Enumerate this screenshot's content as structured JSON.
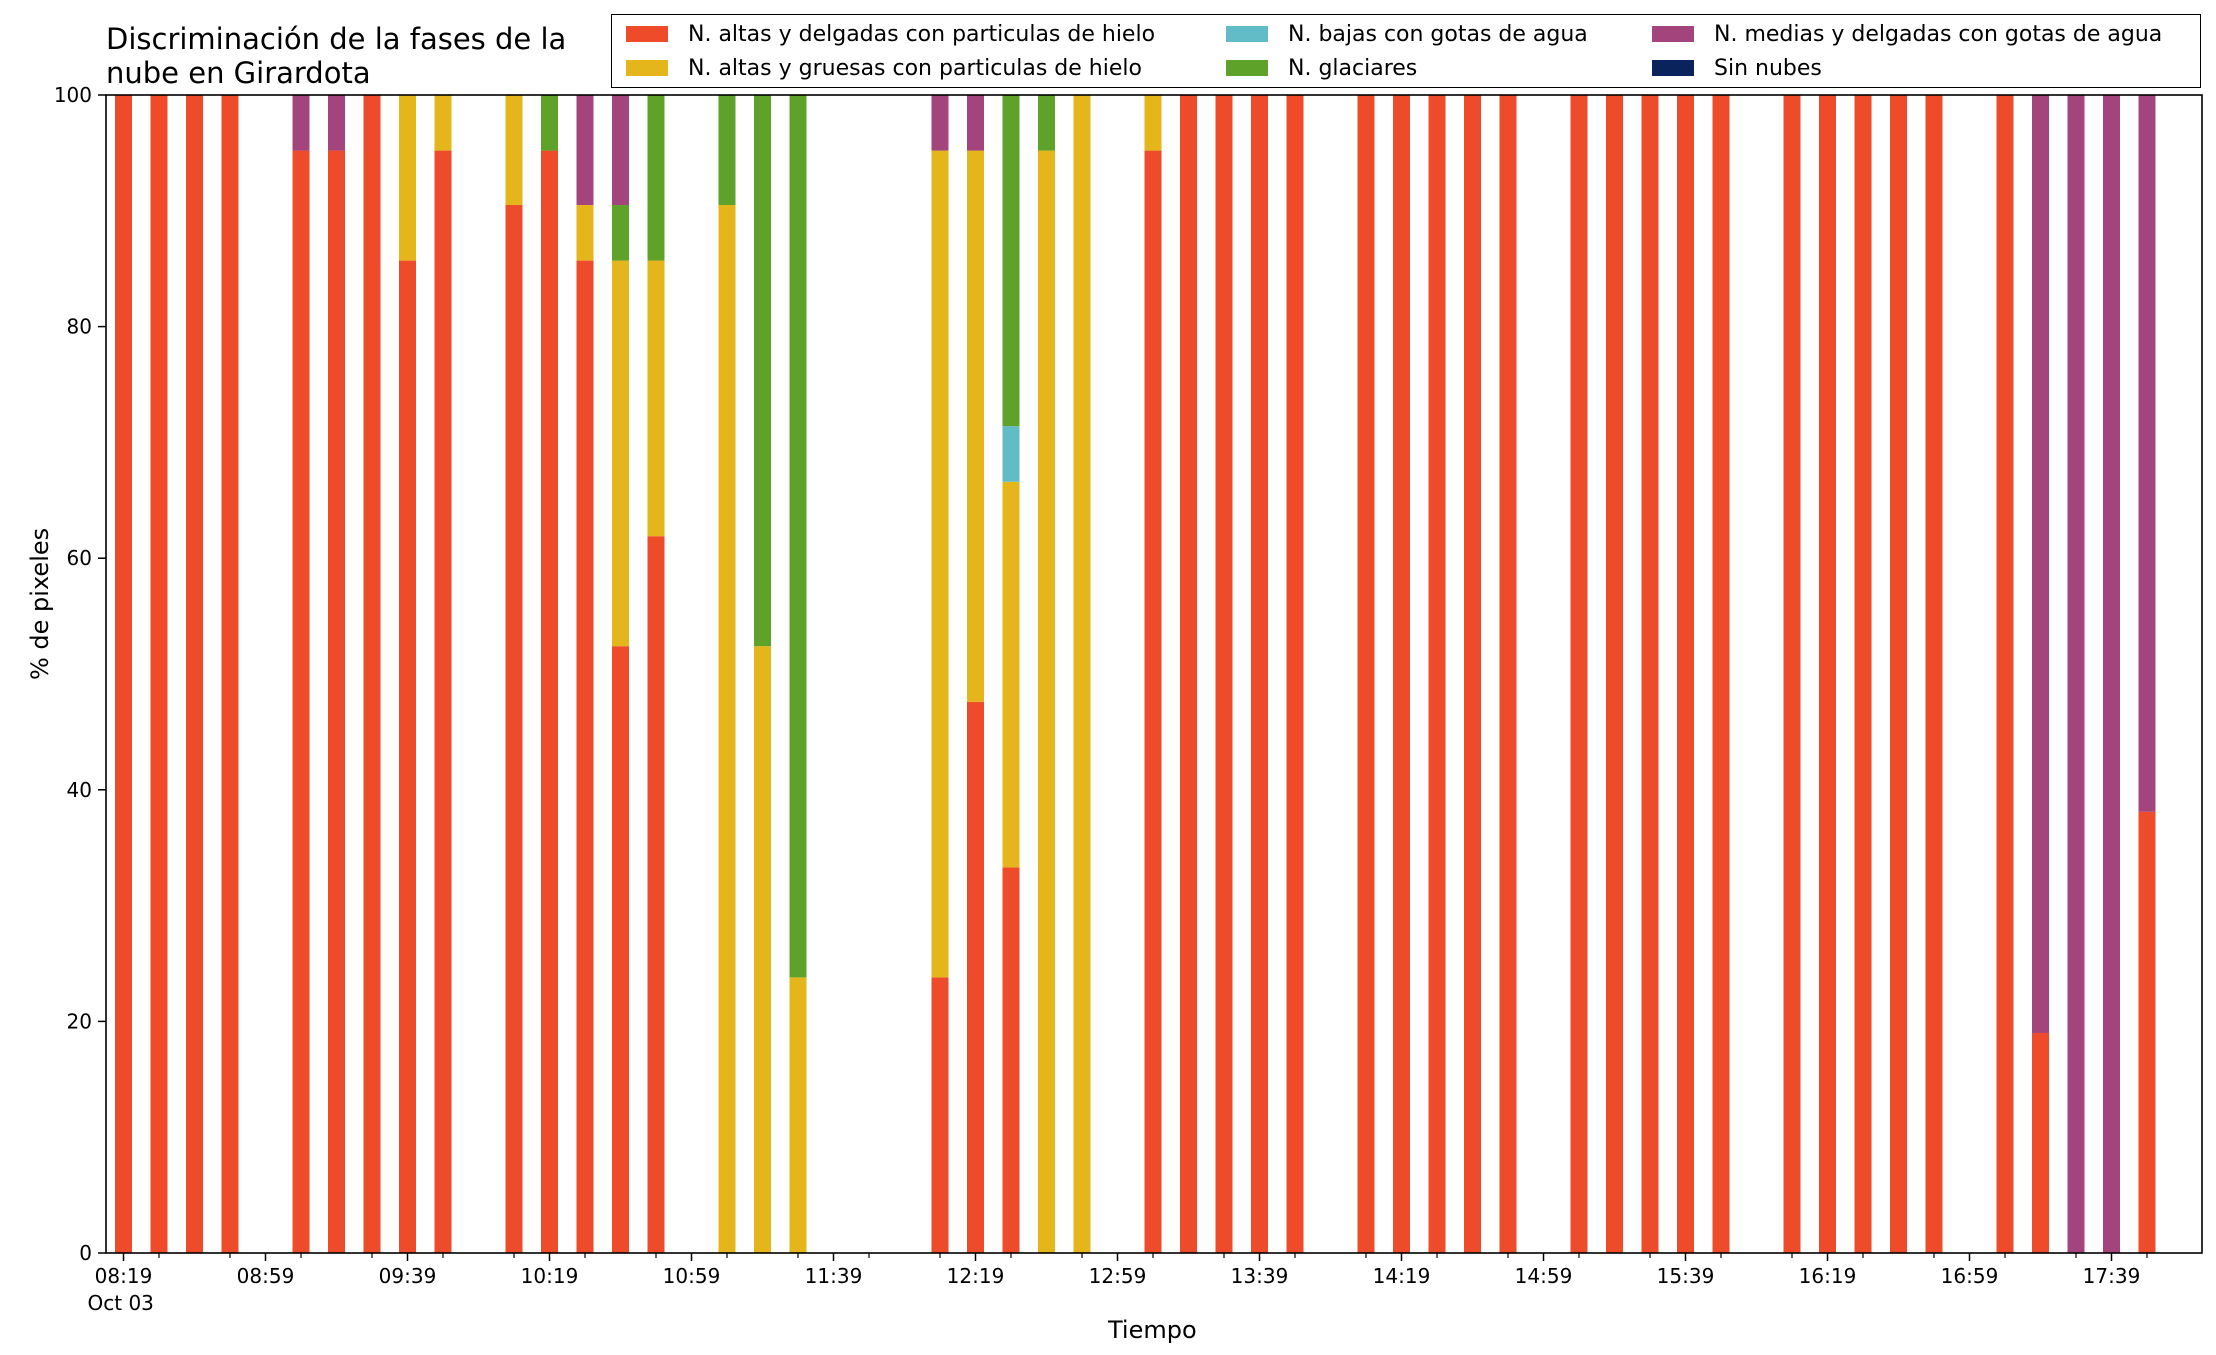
{
  "title_lines": [
    "Discriminación de la fases de la",
    "nube en Girardota"
  ],
  "xlabel": "Tiempo",
  "ylabel": "% de pixeles",
  "legend": [
    {
      "label": "N. altas y delgadas con particulas de hielo",
      "color": "#ee4b2b"
    },
    {
      "label": "N. altas y gruesas con particulas de hielo",
      "color": "#e5b61b"
    },
    {
      "label": "N. bajas con gotas de agua",
      "color": "#62bcc8"
    },
    {
      "label": "N. glaciares",
      "color": "#5ea22a"
    },
    {
      "label": "N. medias y delgadas con gotas de agua",
      "color": "#a4447d"
    },
    {
      "label": "Sin nubes",
      "color": "#0a235c"
    }
  ],
  "chart_data": {
    "type": "bar",
    "stacked": true,
    "title": "Discriminación de la fases de la nube en Girardota",
    "xlabel": "Tiempo",
    "ylabel": "% de pixeles",
    "ylim": [
      0,
      100
    ],
    "yticks": [
      0,
      20,
      40,
      60,
      80,
      100
    ],
    "x_ticks": [
      "08:19",
      "08:59",
      "09:39",
      "10:19",
      "10:59",
      "11:39",
      "12:19",
      "12:59",
      "13:39",
      "14:19",
      "14:59",
      "15:39",
      "16:19",
      "16:59",
      "17:39"
    ],
    "x_tick_date": "Oct 03",
    "xlim_minutes": [
      8.5,
      16.5
    ],
    "categories": [
      "08:19",
      "08:29",
      "08:39",
      "08:49",
      "08:59",
      "09:09",
      "09:19",
      "09:29",
      "09:39",
      "09:49",
      "09:59",
      "10:09",
      "10:19",
      "10:29",
      "10:39",
      "10:49",
      "10:59",
      "11:09",
      "11:19",
      "11:29",
      "11:39",
      "11:49",
      "11:59",
      "12:09",
      "12:19",
      "12:29",
      "12:39",
      "12:49",
      "12:59",
      "13:09",
      "13:19",
      "13:29",
      "13:39",
      "13:49",
      "13:59",
      "14:09",
      "14:19",
      "14:29",
      "14:39",
      "14:49",
      "14:59",
      "15:09",
      "15:19",
      "15:29",
      "15:39",
      "15:49",
      "15:59",
      "16:09",
      "16:19",
      "16:29",
      "16:39",
      "16:49",
      "16:59",
      "17:09",
      "17:19",
      "17:29",
      "17:39",
      "17:49"
    ],
    "series": [
      {
        "name": "N. altas y delgadas con particulas de hielo",
        "color": "#ee4b2b",
        "values": [
          100,
          100,
          100,
          100,
          0,
          95.2,
          95.2,
          100,
          85.7,
          95.2,
          0,
          90.5,
          95.2,
          85.7,
          52.4,
          61.9,
          0,
          0,
          0,
          0,
          0,
          0,
          0,
          23.8,
          47.6,
          33.3,
          0,
          0,
          0,
          95.2,
          100,
          100,
          100,
          100,
          0,
          100,
          100,
          100,
          100,
          100,
          0,
          100,
          100,
          100,
          100,
          100,
          0,
          100,
          100,
          100,
          100,
          100,
          0,
          100,
          19,
          0,
          0,
          38.1
        ]
      },
      {
        "name": "N. altas y gruesas con particulas de hielo",
        "color": "#e5b61b",
        "values": [
          0,
          0,
          0,
          0,
          0,
          0,
          0,
          0,
          14.3,
          4.8,
          0,
          9.5,
          0,
          4.8,
          33.3,
          23.8,
          0,
          90.5,
          52.4,
          23.8,
          0,
          0,
          0,
          71.4,
          47.6,
          33.3,
          95.2,
          100,
          0,
          4.8,
          0,
          0,
          0,
          0,
          0,
          0,
          0,
          0,
          0,
          0,
          0,
          0,
          0,
          0,
          0,
          0,
          0,
          0,
          0,
          0,
          0,
          0,
          0,
          0,
          0,
          0,
          0,
          0
        ]
      },
      {
        "name": "N. bajas con gotas de agua",
        "color": "#62bcc8",
        "values": [
          0,
          0,
          0,
          0,
          0,
          0,
          0,
          0,
          0,
          0,
          0,
          0,
          0,
          0,
          0,
          0,
          0,
          0,
          0,
          0,
          0,
          0,
          0,
          0,
          0,
          4.8,
          0,
          0,
          0,
          0,
          0,
          0,
          0,
          0,
          0,
          0,
          0,
          0,
          0,
          0,
          0,
          0,
          0,
          0,
          0,
          0,
          0,
          0,
          0,
          0,
          0,
          0,
          0,
          0,
          0,
          0,
          0,
          0
        ]
      },
      {
        "name": "N. glaciares",
        "color": "#5ea22a",
        "values": [
          0,
          0,
          0,
          0,
          0,
          0,
          0,
          0,
          0,
          0,
          0,
          0,
          4.8,
          0,
          4.8,
          14.3,
          0,
          9.5,
          47.6,
          76.2,
          0,
          0,
          0,
          0,
          0,
          28.6,
          4.8,
          0,
          0,
          0,
          0,
          0,
          0,
          0,
          0,
          0,
          0,
          0,
          0,
          0,
          0,
          0,
          0,
          0,
          0,
          0,
          0,
          0,
          0,
          0,
          0,
          0,
          0,
          0,
          0,
          0,
          0,
          0
        ]
      },
      {
        "name": "N. medias y delgadas con gotas de agua",
        "color": "#a4447d",
        "values": [
          0,
          0,
          0,
          0,
          0,
          4.8,
          4.8,
          0,
          0,
          0,
          0,
          0,
          0,
          9.5,
          9.5,
          0,
          0,
          0,
          0,
          0,
          0,
          0,
          0,
          4.8,
          4.8,
          0,
          0,
          0,
          0,
          0,
          0,
          0,
          0,
          0,
          0,
          0,
          0,
          0,
          0,
          0,
          0,
          0,
          0,
          0,
          0,
          0,
          0,
          0,
          0,
          0,
          0,
          0,
          0,
          0,
          81,
          100,
          100,
          61.9
        ]
      },
      {
        "name": "Sin nubes",
        "color": "#0a235c",
        "values": [
          0,
          0,
          0,
          0,
          0,
          0,
          0,
          0,
          0,
          0,
          0,
          0,
          0,
          0,
          0,
          0,
          0,
          0,
          0,
          0,
          0,
          0,
          0,
          0,
          0,
          0,
          0,
          0,
          0,
          0,
          0,
          0,
          0,
          0,
          0,
          0,
          0,
          0,
          0,
          0,
          0,
          0,
          0,
          0,
          0,
          0,
          0,
          0,
          0,
          0,
          0,
          0,
          0,
          0,
          0,
          0,
          0,
          0
        ]
      }
    ],
    "legend_position": "top-right",
    "grid": false
  }
}
